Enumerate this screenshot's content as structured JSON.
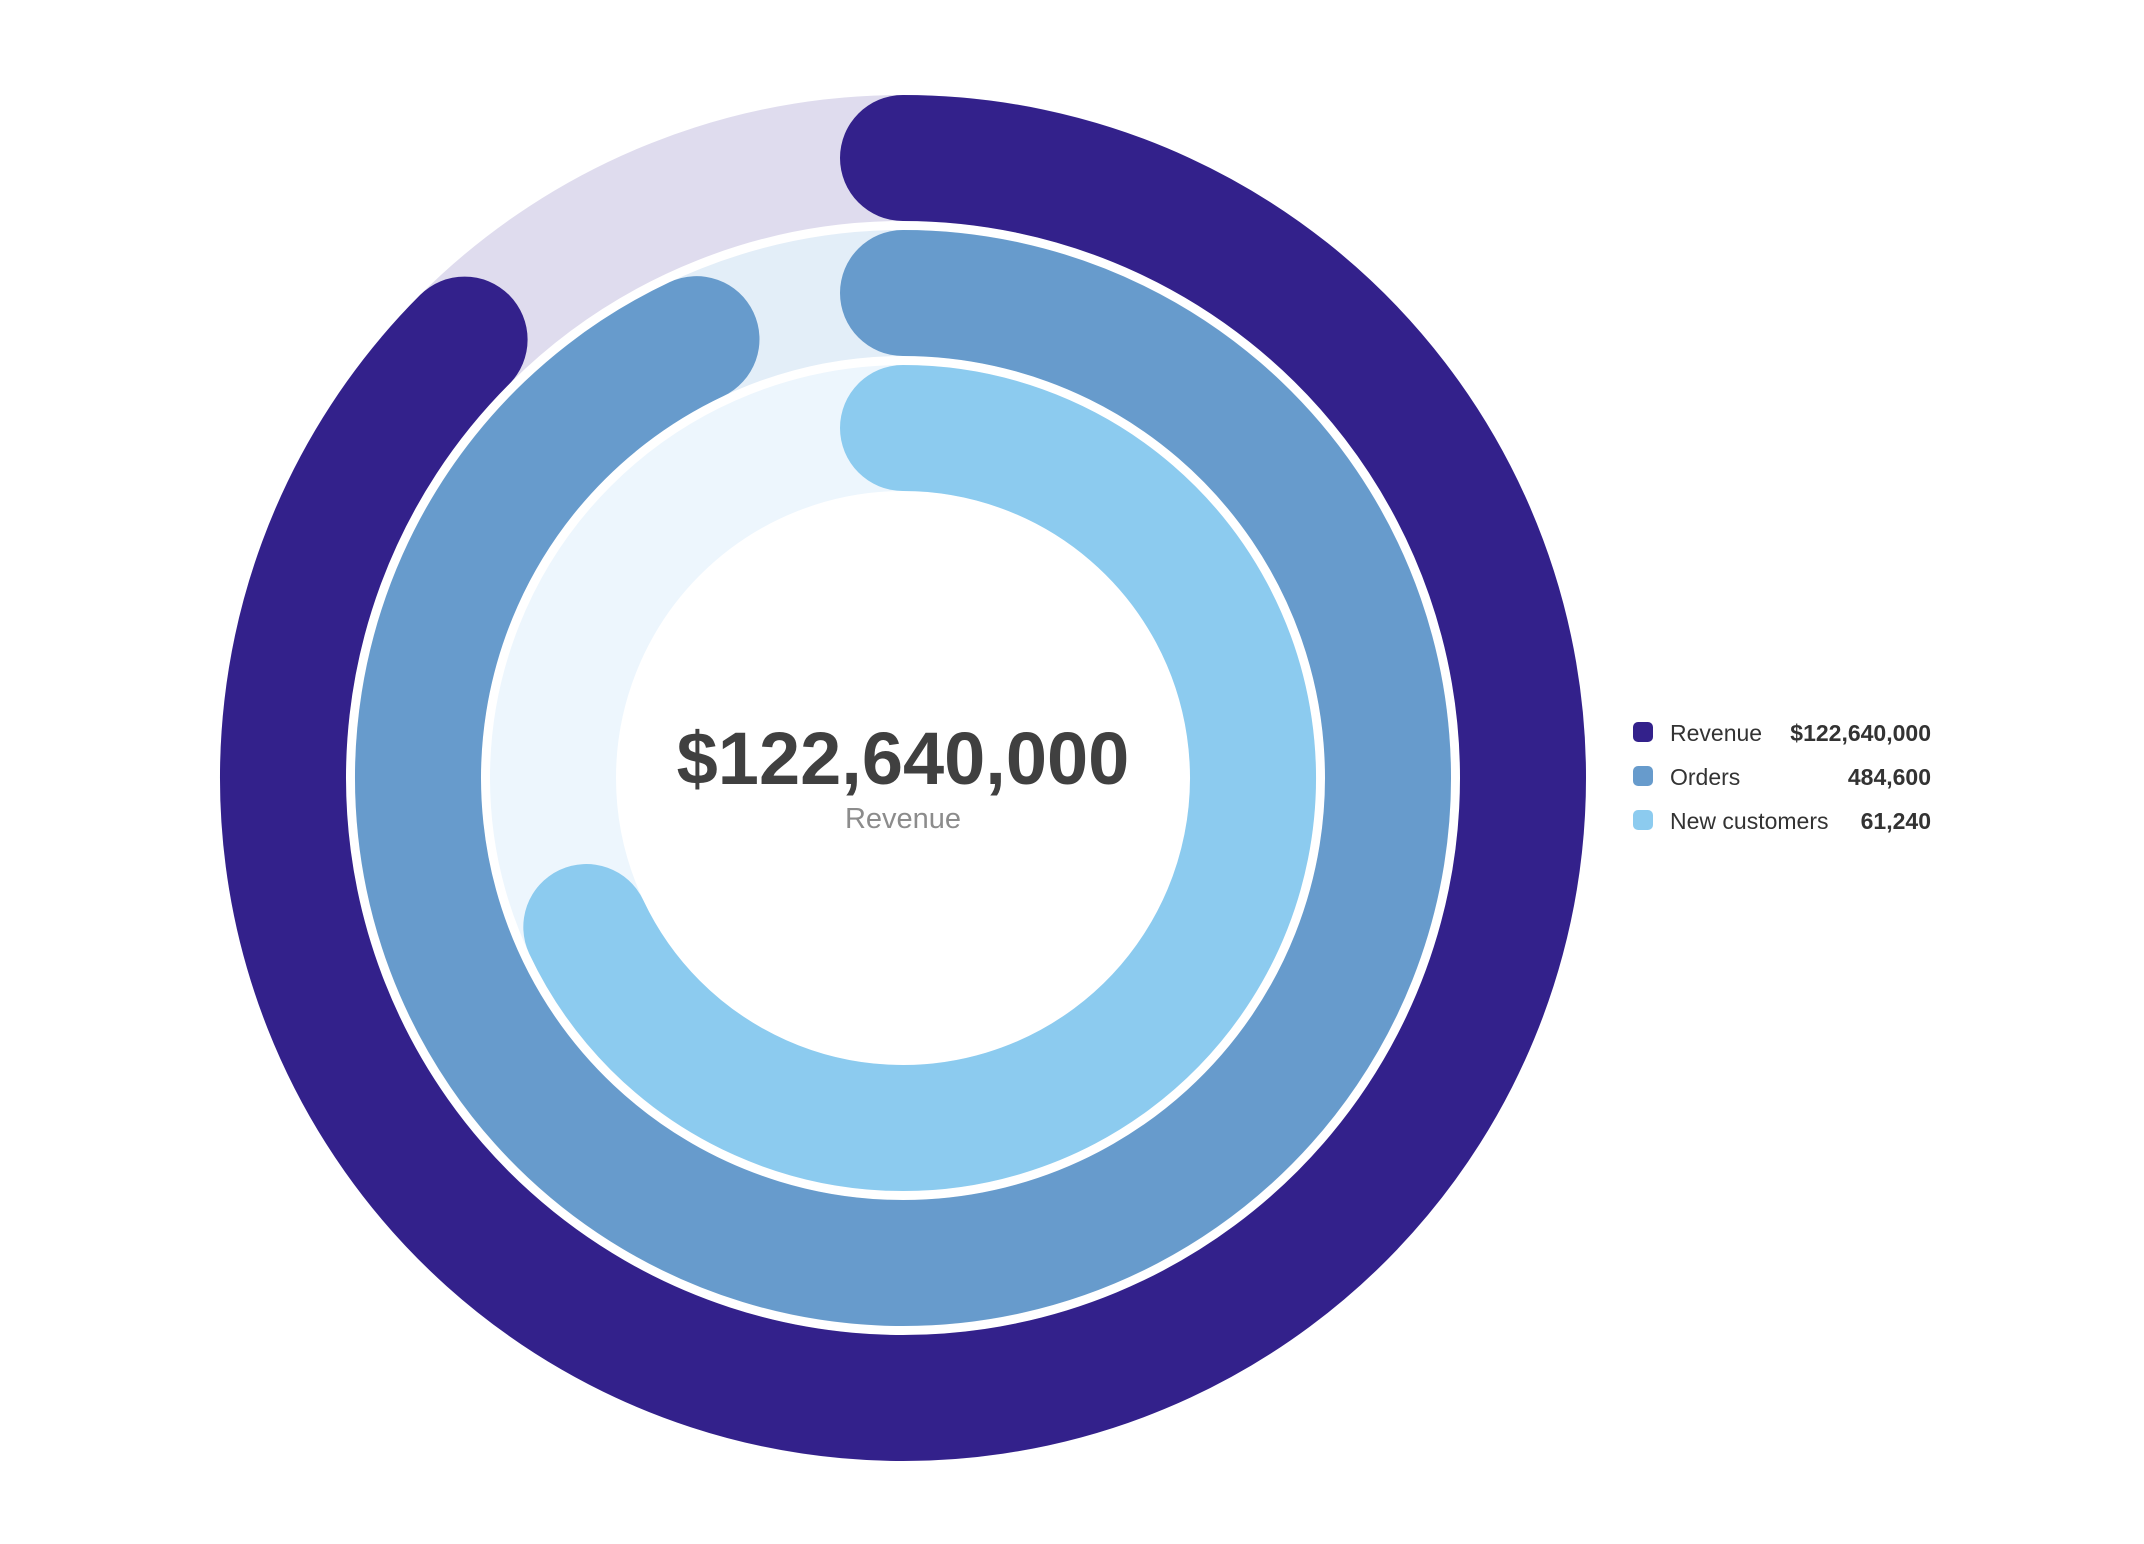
{
  "chart_data": {
    "type": "radial-bar",
    "center": {
      "value": "$122,640,000",
      "label": "Revenue"
    },
    "series": [
      {
        "name": "Revenue",
        "value_label": "$122,640,000",
        "fraction": 0.875,
        "color": "#33218b",
        "track_color": "#dfdcee"
      },
      {
        "name": "Orders",
        "value_label": "484,600",
        "fraction": 0.93,
        "color": "#679bcc",
        "track_color": "#e3eef8"
      },
      {
        "name": "New customers",
        "value_label": "61,240",
        "fraction": 0.68,
        "color": "#8ccbef",
        "track_color": "#edf6fd"
      }
    ],
    "legend_position": "right"
  }
}
